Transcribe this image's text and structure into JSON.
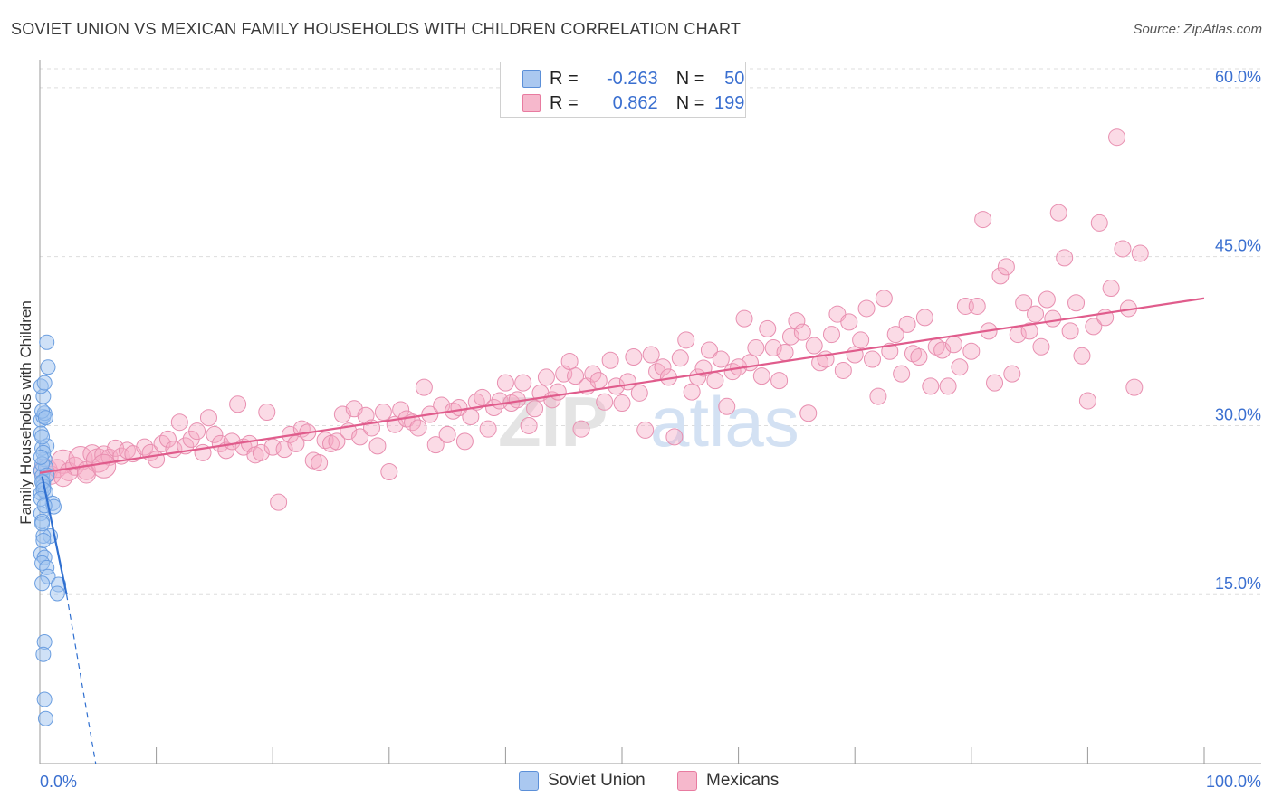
{
  "title": "SOVIET UNION VS MEXICAN FAMILY HOUSEHOLDS WITH CHILDREN CORRELATION CHART",
  "source": "Source: ZipAtlas.com",
  "watermark": {
    "zip": "ZIP",
    "atlas": "atlas"
  },
  "legend": {
    "r_label": "R =",
    "n_label": "N =",
    "series": [
      {
        "name": "Soviet Union",
        "r": "-0.263",
        "n": "50",
        "fill": "#aac8f0",
        "stroke": "#5b8fd8"
      },
      {
        "name": "Mexicans",
        "r": "0.862",
        "n": "199",
        "fill": "#f6b8cc",
        "stroke": "#e87ba0"
      }
    ]
  },
  "colors": {
    "blue_line": "#2f6fd0",
    "pink_line": "#e05c8c",
    "axis_text": "#3a6fd0",
    "grid": "#dddddd"
  },
  "chart_data": {
    "type": "scatter",
    "title": "SOVIET UNION VS MEXICAN FAMILY HOUSEHOLDS WITH CHILDREN CORRELATION CHART",
    "xlabel": "",
    "ylabel": "Family Households with Children",
    "xlim": [
      0,
      100
    ],
    "ylim": [
      0,
      62
    ],
    "x_tick_labels": [
      "0.0%",
      "100.0%"
    ],
    "y_ticks": [
      15,
      30,
      45,
      60
    ],
    "y_tick_labels": [
      "15.0%",
      "30.0%",
      "45.0%",
      "60.0%"
    ],
    "series": [
      {
        "name": "Soviet Union",
        "points": [
          [
            0.1,
            26
          ],
          [
            0.2,
            25.5
          ],
          [
            0.3,
            25
          ],
          [
            0.1,
            24
          ],
          [
            0.4,
            27
          ],
          [
            0.2,
            28
          ],
          [
            0.6,
            28.2
          ],
          [
            0.1,
            30.5
          ],
          [
            0.3,
            30.8
          ],
          [
            0.4,
            31.1
          ],
          [
            0.2,
            31.3
          ],
          [
            0.5,
            30.7
          ],
          [
            0.3,
            32.6
          ],
          [
            0.1,
            33.5
          ],
          [
            0.4,
            33.8
          ],
          [
            0.7,
            35.2
          ],
          [
            0.6,
            37.4
          ],
          [
            0.1,
            29.3
          ],
          [
            0.2,
            29
          ],
          [
            0.3,
            27.6
          ],
          [
            0.5,
            26.3
          ],
          [
            0.2,
            26.6
          ],
          [
            0.6,
            25.6
          ],
          [
            0.3,
            24.6
          ],
          [
            0.5,
            24.1
          ],
          [
            1.1,
            23.1
          ],
          [
            1.2,
            22.8
          ],
          [
            0.1,
            22.2
          ],
          [
            0.2,
            21.5
          ],
          [
            0.9,
            20.2
          ],
          [
            0.3,
            20.2
          ],
          [
            0.1,
            18.6
          ],
          [
            0.4,
            18.3
          ],
          [
            0.2,
            17.8
          ],
          [
            0.6,
            17.4
          ],
          [
            0.7,
            16.6
          ],
          [
            0.2,
            16.0
          ],
          [
            1.6,
            15.9
          ],
          [
            1.5,
            15.1
          ],
          [
            0.4,
            10.8
          ],
          [
            0.3,
            9.7
          ],
          [
            0.4,
            5.7
          ],
          [
            0.5,
            4.0
          ],
          [
            0.1,
            27.2
          ],
          [
            0.2,
            25.0
          ],
          [
            0.3,
            24.3
          ],
          [
            0.1,
            23.5
          ],
          [
            0.4,
            22.9
          ],
          [
            0.2,
            21.3
          ],
          [
            0.3,
            19.8
          ]
        ],
        "trend": {
          "x": [
            0.2,
            2.3
          ],
          "y": [
            25.5,
            15.0
          ],
          "dashed_x": [
            2.3,
            4.8
          ],
          "dashed_y": [
            15.0,
            0.0
          ]
        }
      },
      {
        "name": "Mexicans",
        "points": [
          [
            0.5,
            26.0
          ],
          [
            1.0,
            25.6
          ],
          [
            1.5,
            26.2
          ],
          [
            2.0,
            26.8
          ],
          [
            2.5,
            25.9
          ],
          [
            3.0,
            26.4
          ],
          [
            3.5,
            27.1
          ],
          [
            4.0,
            26.0
          ],
          [
            4.5,
            27.5
          ],
          [
            5.0,
            26.9
          ],
          [
            5.5,
            27.4
          ],
          [
            6.0,
            27.2
          ],
          [
            6.5,
            28.0
          ],
          [
            7.0,
            27.3
          ],
          [
            7.5,
            27.8
          ],
          [
            8.0,
            27.5
          ],
          [
            9.0,
            28.1
          ],
          [
            9.5,
            27.6
          ],
          [
            10.0,
            27.0
          ],
          [
            10.5,
            28.4
          ],
          [
            11.0,
            28.8
          ],
          [
            11.5,
            27.9
          ],
          [
            12.0,
            30.3
          ],
          [
            12.5,
            28.2
          ],
          [
            13.0,
            28.8
          ],
          [
            13.5,
            29.5
          ],
          [
            14.0,
            27.6
          ],
          [
            14.5,
            30.7
          ],
          [
            15.0,
            29.2
          ],
          [
            15.5,
            28.4
          ],
          [
            16.0,
            27.8
          ],
          [
            16.5,
            28.6
          ],
          [
            17.0,
            31.9
          ],
          [
            17.5,
            28.1
          ],
          [
            18.0,
            28.4
          ],
          [
            18.5,
            27.4
          ],
          [
            19.0,
            27.6
          ],
          [
            19.5,
            31.2
          ],
          [
            20.0,
            28.1
          ],
          [
            20.5,
            23.2
          ],
          [
            21.0,
            27.9
          ],
          [
            21.5,
            29.2
          ],
          [
            22.0,
            28.4
          ],
          [
            22.5,
            29.7
          ],
          [
            23.0,
            29.4
          ],
          [
            23.5,
            26.9
          ],
          [
            24.0,
            26.7
          ],
          [
            24.5,
            28.7
          ],
          [
            25.0,
            28.4
          ],
          [
            25.5,
            28.6
          ],
          [
            26.0,
            31.0
          ],
          [
            26.5,
            29.5
          ],
          [
            27.0,
            31.5
          ],
          [
            27.5,
            29.0
          ],
          [
            28.0,
            30.9
          ],
          [
            28.5,
            29.8
          ],
          [
            29.0,
            28.2
          ],
          [
            29.5,
            31.2
          ],
          [
            30.0,
            25.9
          ],
          [
            30.5,
            30.1
          ],
          [
            31.0,
            31.4
          ],
          [
            31.5,
            30.6
          ],
          [
            32.0,
            30.3
          ],
          [
            32.5,
            29.8
          ],
          [
            33.0,
            33.4
          ],
          [
            33.5,
            31.0
          ],
          [
            34.0,
            28.3
          ],
          [
            34.5,
            31.8
          ],
          [
            35.0,
            29.2
          ],
          [
            35.5,
            31.3
          ],
          [
            36.0,
            31.6
          ],
          [
            36.5,
            28.6
          ],
          [
            37.0,
            30.8
          ],
          [
            37.5,
            32.1
          ],
          [
            38.0,
            32.5
          ],
          [
            38.5,
            29.7
          ],
          [
            39.0,
            31.6
          ],
          [
            39.5,
            32.2
          ],
          [
            40.0,
            33.8
          ],
          [
            40.5,
            32.0
          ],
          [
            41.0,
            32.3
          ],
          [
            41.5,
            33.8
          ],
          [
            42.0,
            30.0
          ],
          [
            42.5,
            31.5
          ],
          [
            43.0,
            32.9
          ],
          [
            43.5,
            34.3
          ],
          [
            44.0,
            32.3
          ],
          [
            44.5,
            33.0
          ],
          [
            45.0,
            34.6
          ],
          [
            45.5,
            35.7
          ],
          [
            46.0,
            34.4
          ],
          [
            46.5,
            29.7
          ],
          [
            47.0,
            33.5
          ],
          [
            47.5,
            34.6
          ],
          [
            48.0,
            34.0
          ],
          [
            48.5,
            32.1
          ],
          [
            49.0,
            35.8
          ],
          [
            49.5,
            33.5
          ],
          [
            50.0,
            32.0
          ],
          [
            50.5,
            33.9
          ],
          [
            51.0,
            36.1
          ],
          [
            51.5,
            32.9
          ],
          [
            52.0,
            29.6
          ],
          [
            52.5,
            36.3
          ],
          [
            53.0,
            34.8
          ],
          [
            53.5,
            35.2
          ],
          [
            54.0,
            34.3
          ],
          [
            54.5,
            29.0
          ],
          [
            55.0,
            36.0
          ],
          [
            55.5,
            37.6
          ],
          [
            56.0,
            33.0
          ],
          [
            56.5,
            34.3
          ],
          [
            57.0,
            35.1
          ],
          [
            57.5,
            36.7
          ],
          [
            58.0,
            34.0
          ],
          [
            58.5,
            35.9
          ],
          [
            59.0,
            31.7
          ],
          [
            59.5,
            34.8
          ],
          [
            60.0,
            35.2
          ],
          [
            60.5,
            39.5
          ],
          [
            61.0,
            35.6
          ],
          [
            61.5,
            36.9
          ],
          [
            62.0,
            34.4
          ],
          [
            62.5,
            38.6
          ],
          [
            63.0,
            36.9
          ],
          [
            63.5,
            34.0
          ],
          [
            64.0,
            36.5
          ],
          [
            64.5,
            37.9
          ],
          [
            65.0,
            39.3
          ],
          [
            65.5,
            38.3
          ],
          [
            66.0,
            31.1
          ],
          [
            66.5,
            37.1
          ],
          [
            67.0,
            35.6
          ],
          [
            67.5,
            35.9
          ],
          [
            68.0,
            38.1
          ],
          [
            68.5,
            39.9
          ],
          [
            69.0,
            34.9
          ],
          [
            69.5,
            39.2
          ],
          [
            70.0,
            36.3
          ],
          [
            70.5,
            37.6
          ],
          [
            71.0,
            40.4
          ],
          [
            71.5,
            35.9
          ],
          [
            72.0,
            32.6
          ],
          [
            72.5,
            41.3
          ],
          [
            73.0,
            36.6
          ],
          [
            73.5,
            38.1
          ],
          [
            74.0,
            34.6
          ],
          [
            74.5,
            39.0
          ],
          [
            75.0,
            36.4
          ],
          [
            75.5,
            36.1
          ],
          [
            76.0,
            39.6
          ],
          [
            76.5,
            33.5
          ],
          [
            77.0,
            37.0
          ],
          [
            77.5,
            36.7
          ],
          [
            78.0,
            33.5
          ],
          [
            78.5,
            37.2
          ],
          [
            79.0,
            35.2
          ],
          [
            79.5,
            40.6
          ],
          [
            80.0,
            36.6
          ],
          [
            80.5,
            40.6
          ],
          [
            81.0,
            48.3
          ],
          [
            81.5,
            38.4
          ],
          [
            82.0,
            33.8
          ],
          [
            82.5,
            43.3
          ],
          [
            83.0,
            44.1
          ],
          [
            83.5,
            34.6
          ],
          [
            84.0,
            38.1
          ],
          [
            84.5,
            40.9
          ],
          [
            85.0,
            38.4
          ],
          [
            85.5,
            39.9
          ],
          [
            86.0,
            37.0
          ],
          [
            86.5,
            41.2
          ],
          [
            87.0,
            39.5
          ],
          [
            87.5,
            48.9
          ],
          [
            88.0,
            44.9
          ],
          [
            88.5,
            38.4
          ],
          [
            89.0,
            40.9
          ],
          [
            89.5,
            36.2
          ],
          [
            90.0,
            32.2
          ],
          [
            90.5,
            38.8
          ],
          [
            91.0,
            48.0
          ],
          [
            91.5,
            39.6
          ],
          [
            92.0,
            42.2
          ],
          [
            92.5,
            55.6
          ],
          [
            93.0,
            45.7
          ],
          [
            93.5,
            40.4
          ],
          [
            94.0,
            33.4
          ],
          [
            94.5,
            45.3
          ],
          [
            4.0,
            25.7
          ],
          [
            5.5,
            26.4
          ],
          [
            2.0,
            25.4
          ]
        ],
        "trend": {
          "x": [
            0,
            100
          ],
          "y": [
            25.8,
            41.3
          ]
        }
      }
    ]
  }
}
